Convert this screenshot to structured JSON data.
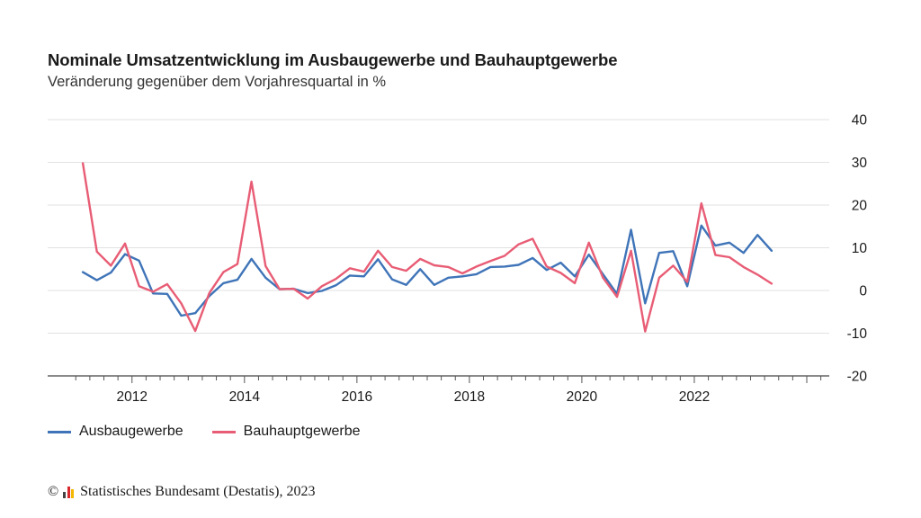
{
  "header": {
    "title": "Nominale Umsatzentwicklung im Ausbaugewerbe und Bauhauptgewerbe",
    "subtitle": "Veränderung gegenüber dem Vorjahresquartal in %"
  },
  "footer": {
    "copyright_symbol": "©",
    "source": "Statistisches Bundesamt (Destatis), 2023",
    "logo_colors": [
      "#444444",
      "#d9272e",
      "#f3b800"
    ]
  },
  "chart_data": {
    "type": "line",
    "xlabel": "",
    "ylabel": "",
    "ylim": [
      -20,
      40
    ],
    "yticks": [
      -20,
      -10,
      0,
      10,
      20,
      30,
      40
    ],
    "yaxis_position": "right",
    "xlim": [
      2010.5,
      2024.4
    ],
    "xticks": [
      2012,
      2014,
      2016,
      2018,
      2020,
      2022
    ],
    "xtick_labels": [
      "2012",
      "2014",
      "2016",
      "2018",
      "2020",
      "2022"
    ],
    "grid": "horizontal",
    "legend_position": "bottom-left",
    "x": [
      "2011 Q1",
      "2011 Q2",
      "2011 Q3",
      "2011 Q4",
      "2012 Q1",
      "2012 Q2",
      "2012 Q3",
      "2012 Q4",
      "2013 Q1",
      "2013 Q2",
      "2013 Q3",
      "2013 Q4",
      "2014 Q1",
      "2014 Q2",
      "2014 Q3",
      "2014 Q4",
      "2015 Q1",
      "2015 Q2",
      "2015 Q3",
      "2015 Q4",
      "2016 Q1",
      "2016 Q2",
      "2016 Q3",
      "2016 Q4",
      "2017 Q1",
      "2017 Q2",
      "2017 Q3",
      "2017 Q4",
      "2018 Q1",
      "2018 Q2",
      "2018 Q3",
      "2018 Q4",
      "2019 Q1",
      "2019 Q2",
      "2019 Q3",
      "2019 Q4",
      "2020 Q1",
      "2020 Q2",
      "2020 Q3",
      "2020 Q4",
      "2021 Q1",
      "2021 Q2",
      "2021 Q3",
      "2021 Q4",
      "2022 Q1",
      "2022 Q2",
      "2022 Q3",
      "2022 Q4",
      "2023 Q1",
      "2023 Q2"
    ],
    "series": [
      {
        "name": "Ausbaugewerbe",
        "color": "#3f74b8",
        "values": [
          4.3,
          2.4,
          4.2,
          8.5,
          7.0,
          -0.7,
          -0.8,
          -5.9,
          -5.3,
          -1.3,
          1.7,
          2.5,
          7.4,
          3.0,
          0.3,
          0.4,
          -0.6,
          -0.1,
          1.2,
          3.5,
          3.3,
          7.3,
          2.6,
          1.3,
          5.0,
          1.3,
          3.0,
          3.3,
          3.8,
          5.5,
          5.6,
          6.0,
          7.6,
          4.8,
          6.5,
          3.3,
          8.4,
          3.8,
          -0.8,
          14.2,
          -3.0,
          8.8,
          9.2,
          1.0,
          15.2,
          10.5,
          11.2,
          8.8,
          13.0,
          9.3
        ]
      },
      {
        "name": "Bauhauptgewerbe",
        "color": "#e85d75",
        "values": [
          29.8,
          9.1,
          5.8,
          11.0,
          1.0,
          -0.3,
          1.5,
          -3.0,
          -9.5,
          -0.6,
          4.3,
          6.2,
          25.5,
          5.7,
          0.3,
          0.4,
          -1.9,
          1.0,
          2.7,
          5.2,
          4.4,
          9.3,
          5.5,
          4.6,
          7.4,
          5.9,
          5.5,
          4.0,
          5.6,
          6.9,
          8.1,
          10.8,
          12.1,
          5.6,
          4.1,
          1.7,
          11.2,
          3.0,
          -1.5,
          9.3,
          -9.6,
          3.0,
          5.8,
          2.0,
          20.4,
          8.3,
          7.8,
          5.5,
          3.7,
          1.6
        ]
      }
    ]
  }
}
